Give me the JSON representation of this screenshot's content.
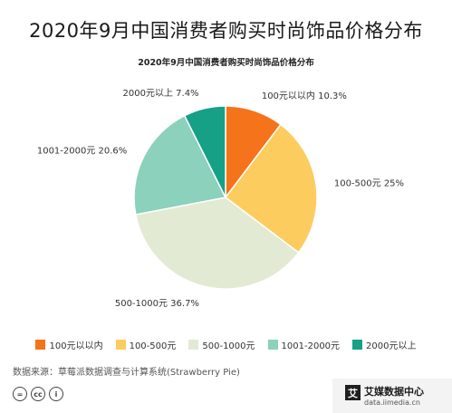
{
  "header": {
    "title": "2020年9月中国消费者购买时尚饰品价格分布"
  },
  "chart_data": {
    "type": "pie",
    "title": "2020年9月中国消费者购买时尚饰品价格分布",
    "slices": [
      {
        "label": "100元以以内",
        "value": 10.3,
        "value_label": "10.3%",
        "color": "#f5731a"
      },
      {
        "label": "100-500元",
        "value": 25,
        "value_label": "25%",
        "color": "#fdcc5f"
      },
      {
        "label": "500-1000元",
        "value": 36.7,
        "value_label": "36.7%",
        "color": "#e2ead4"
      },
      {
        "label": "1001-2000元",
        "value": 20.6,
        "value_label": "20.6%",
        "color": "#8bd1bb"
      },
      {
        "label": "2000元以上",
        "value": 7.4,
        "value_label": "7.4%",
        "color": "#16a085"
      }
    ],
    "legend_placement": "bottom"
  },
  "footer": {
    "source": "数据来源：草莓派数据调查与计算系统(Strawberry Pie)",
    "license_icons": [
      "=",
      "cc",
      "i"
    ],
    "brand_logo": "艾",
    "brand_name": "艾媒数据中心",
    "brand_url": "data.iimedia.cn"
  }
}
